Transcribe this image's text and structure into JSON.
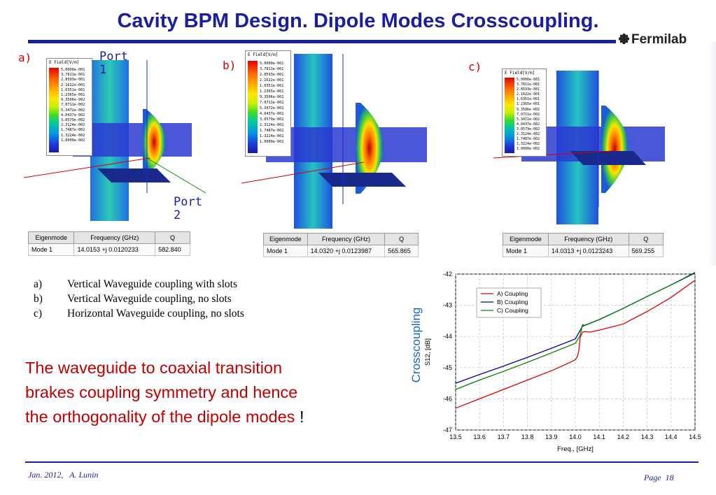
{
  "slide": {
    "title": "Cavity BPM Design. Dipole Modes Crosscoupling.",
    "logo_text": "Fermilab",
    "footer_left": "Jan. 2012,   A. Lunin",
    "footer_right": "Page  18"
  },
  "panels": [
    {
      "label": "a)",
      "port1": "Port\n1",
      "port2": "Port\n2",
      "legend_title": "E Field[V/m]",
      "legend_ticks": [
        "5.0000e-001",
        "3.7811e-001",
        "2.8593e-001",
        "2.1622e-001",
        "1.6351e-001",
        "1.2365e-001",
        "9.3506e-002",
        "7.0711e-002",
        "5.3472e-002",
        "4.0437e-002",
        "3.0579e-002",
        "2.3124e-002",
        "1.7487e-002",
        "1.3224e-002",
        "1.0000e-002"
      ],
      "table": {
        "headers": [
          "Eigenmode",
          "Frequency (GHz)",
          "Q"
        ],
        "rows": [
          [
            "Mode 1",
            "14.0153 +j 0.0120233",
            "582.840"
          ]
        ]
      }
    },
    {
      "label": "b)",
      "legend_title": "E Field[V/m]",
      "legend_ticks": [
        "5.0000e-001",
        "3.7811e-001",
        "2.8593e-001",
        "2.1622e-001",
        "1.6351e-001",
        "1.2365e-001",
        "9.3506e-002",
        "7.0711e-002",
        "5.3472e-002",
        "4.0437e-002",
        "3.0579e-002",
        "2.3124e-002",
        "1.7487e-002",
        "1.3224e-002",
        "1.0000e-002"
      ],
      "table": {
        "headers": [
          "Eigenmode",
          "Frequency (GHz)",
          "Q"
        ],
        "rows": [
          [
            "Mode 1",
            "14.0320 +j 0.0123987",
            "565.865"
          ]
        ]
      }
    },
    {
      "label": "c)",
      "legend_title": "E Field[V/m]",
      "legend_ticks": [
        "5.0000e-001",
        "3.7811e-001",
        "2.8593e-001",
        "2.1622e-001",
        "1.6351e-001",
        "1.2365e-001",
        "9.3506e-002",
        "7.0711e-002",
        "5.3472e-002",
        "4.0437e-002",
        "3.0579e-002",
        "2.3124e-002",
        "1.7487e-002",
        "1.3224e-002",
        "1.0000e-002"
      ],
      "table": {
        "headers": [
          "Eigenmode",
          "Frequency (GHz)",
          "Q"
        ],
        "rows": [
          [
            "Mode 1",
            "14.0313 +j 0.0123243",
            "569.255"
          ]
        ]
      }
    }
  ],
  "description": [
    {
      "tag": "a)",
      "text": "Vertical Waveguide coupling with slots"
    },
    {
      "tag": "b)",
      "text": "Vertical Waveguide coupling, no slots"
    },
    {
      "tag": "c)",
      "text": "Horizontal Waveguide coupling, no slots"
    }
  ],
  "conclusion": {
    "lines": [
      "The waveguide to coaxial transition",
      "brakes coupling symmetry and hence",
      "the orthogonality of the dipole modes"
    ],
    "end_mark": "!"
  },
  "chart_data": {
    "type": "line",
    "side_label": "Crosscoupling",
    "ylabel": "S12, [dB]",
    "xlabel": "Freq., [GHz]",
    "xlim": [
      13.5,
      14.5
    ],
    "ylim": [
      -47,
      -42
    ],
    "xticks": [
      "13.5",
      "13.6",
      "13.7",
      "13.8",
      "13.9",
      "14.0",
      "14.1",
      "14.2",
      "14.3",
      "14.4",
      "14.5"
    ],
    "yticks": [
      "-42",
      "-43",
      "-44",
      "-45",
      "-46",
      "-47"
    ],
    "grid": true,
    "legend_position": "top-left",
    "series": [
      {
        "name": "A) Coupling",
        "color": "#e00000",
        "points": [
          [
            13.5,
            -46.3
          ],
          [
            13.6,
            -46.0
          ],
          [
            13.7,
            -45.7
          ],
          [
            13.8,
            -45.4
          ],
          [
            13.9,
            -45.1
          ],
          [
            13.95,
            -44.93
          ],
          [
            14.0,
            -44.75
          ],
          [
            14.01,
            -44.62
          ],
          [
            14.015,
            -44.45
          ],
          [
            14.02,
            -44.05
          ],
          [
            14.03,
            -43.86
          ],
          [
            14.04,
            -43.84
          ],
          [
            14.06,
            -43.86
          ],
          [
            14.1,
            -43.8
          ],
          [
            14.2,
            -43.6
          ],
          [
            14.3,
            -43.2
          ],
          [
            14.4,
            -42.75
          ],
          [
            14.5,
            -42.2
          ]
        ]
      },
      {
        "name": "B) Coupling",
        "color": "#000099",
        "points": [
          [
            13.5,
            -45.5
          ],
          [
            13.6,
            -45.22
          ],
          [
            13.7,
            -44.95
          ],
          [
            13.8,
            -44.67
          ],
          [
            13.9,
            -44.38
          ],
          [
            14.0,
            -44.08
          ],
          [
            14.03,
            -43.67
          ],
          [
            14.1,
            -43.46
          ],
          [
            14.2,
            -43.1
          ],
          [
            14.3,
            -42.72
          ],
          [
            14.4,
            -42.35
          ],
          [
            14.5,
            -41.95
          ]
        ]
      },
      {
        "name": "C) Coupling",
        "color": "#008000",
        "points": [
          [
            13.5,
            -45.7
          ],
          [
            13.6,
            -45.4
          ],
          [
            13.7,
            -45.12
          ],
          [
            13.8,
            -44.83
          ],
          [
            13.9,
            -44.53
          ],
          [
            14.0,
            -44.22
          ],
          [
            14.02,
            -43.98
          ],
          [
            14.03,
            -43.62
          ],
          [
            14.04,
            -43.65
          ],
          [
            14.1,
            -43.46
          ],
          [
            14.2,
            -43.1
          ],
          [
            14.3,
            -42.72
          ],
          [
            14.4,
            -42.35
          ],
          [
            14.5,
            -41.97
          ]
        ]
      }
    ]
  }
}
